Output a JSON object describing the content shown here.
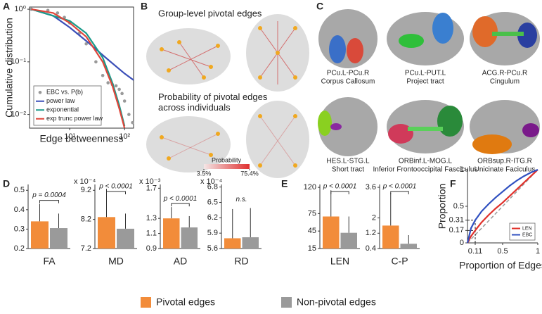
{
  "panel_letters": [
    "A",
    "B",
    "C",
    "D",
    "E",
    "F"
  ],
  "brain_maps": {
    "titles": [
      "Group-level pivotal edges",
      "Probability of pivotal edges across individuals"
    ],
    "colorbar": {
      "label": "Probability",
      "colors": [
        "#f4e6e6",
        "#e03030"
      ],
      "ticks": [
        {
          "value": 3.5,
          "label": "3.5%"
        },
        {
          "value": 75.4,
          "label": "75.4%"
        }
      ]
    }
  },
  "tracts": [
    {
      "pair": "PCu.L-PCu.R",
      "name": "Corpus Callosum"
    },
    {
      "pair": "PCu.L-PUT.L",
      "name": "Project tract"
    },
    {
      "pair": "ACG.R-PCu.R",
      "name": "Cingulum"
    },
    {
      "pair": "HES.L-STG.L",
      "name": "Short tract"
    },
    {
      "pair": "ORBinf.L-MOG.L",
      "name": "Inferior Frontooccipital Fasciculus"
    },
    {
      "pair": "ORBsup.R-ITG.R",
      "name": "Unicinate Faciculus"
    }
  ],
  "groups": [
    {
      "name": "Pivotal edges",
      "color": "#f28c3a"
    },
    {
      "name": "Non-pivotal edges",
      "color": "#9a9a9a"
    }
  ],
  "chart_data": [
    {
      "type": "line",
      "xlabel": "Edge betweenness",
      "ylabel": "Cumulative distribution",
      "xscale": "log",
      "yscale": "log",
      "box": true,
      "legend": "lower left",
      "xlim": [
        1.85,
        146
      ],
      "ylim": [
        0.0055,
        1.1
      ],
      "xticks": [
        {
          "value": 10,
          "label": "10¹"
        },
        {
          "value": 100,
          "label": "10²"
        }
      ],
      "yticks": [
        {
          "value": 0.01,
          "label": "10⁻²"
        },
        {
          "value": 0.1,
          "label": "10⁻¹"
        },
        {
          "value": 1,
          "label": "10⁰"
        }
      ],
      "series": [
        {
          "name": "EBC vs. P(b)",
          "color": "#999999",
          "marker": true,
          "x": [
            2,
            4,
            6,
            8,
            10,
            15,
            20,
            30,
            40,
            50,
            60,
            70,
            80,
            90,
            100,
            120,
            140
          ],
          "values": [
            1,
            0.95,
            0.85,
            0.7,
            0.55,
            0.35,
            0.22,
            0.1,
            0.055,
            0.04,
            0.037,
            0.035,
            0.03,
            0.025,
            0.018,
            0.01,
            0.007
          ]
        },
        {
          "name": "power law",
          "color": "#3b4fb8",
          "x": [
            2,
            5,
            10,
            20,
            50,
            100,
            146
          ],
          "values": [
            1,
            0.75,
            0.45,
            0.25,
            0.11,
            0.06,
            0.045
          ]
        },
        {
          "name": "exponential",
          "color": "#1a9a8a",
          "x": [
            2,
            10,
            20,
            40,
            60,
            80,
            100
          ],
          "values": [
            1,
            0.6,
            0.35,
            0.12,
            0.04,
            0.015,
            0.006
          ]
        },
        {
          "name": "exp trunc power law",
          "color": "#e0453a",
          "x": [
            2,
            5,
            10,
            20,
            40,
            60,
            80,
            100
          ],
          "values": [
            1,
            0.85,
            0.55,
            0.3,
            0.1,
            0.035,
            0.013,
            0.0055
          ]
        }
      ]
    },
    {
      "type": "bar",
      "xlabel": "FA",
      "ylim": [
        0.2,
        0.53
      ],
      "yticks": [
        0.2,
        0.3,
        0.4,
        0.5
      ],
      "values": [
        0.34,
        0.305
      ],
      "errors": [
        0.09,
        0.075
      ],
      "annotation": "p = 0.0004"
    },
    {
      "type": "bar",
      "xlabel": "MD",
      "y_multiplier": "x 10⁻⁴",
      "ylim": [
        7.2,
        9.4
      ],
      "yticks": [
        7.2,
        8.2,
        9.2
      ],
      "values": [
        8.28,
        7.88
      ],
      "errors": [
        0.97,
        0.52
      ],
      "annotation": "p < 0.0001"
    },
    {
      "type": "bar",
      "xlabel": "AD",
      "y_multiplier": "x 10⁻³",
      "ylim": [
        0.9,
        1.75
      ],
      "yticks": [
        0.9,
        1.1,
        1.3,
        1.7
      ],
      "values": [
        1.3,
        1.18
      ],
      "errors": [
        0.15,
        0.15
      ],
      "annotation": "p < 0.0001"
    },
    {
      "type": "bar",
      "xlabel": "RD",
      "y_multiplier": "x 10⁻⁴",
      "ylim": [
        5.6,
        6.85
      ],
      "yticks": [
        5.6,
        5.9,
        6.2,
        6.5,
        6.8
      ],
      "values": [
        5.8,
        5.82
      ],
      "errors": [
        0.57,
        0.57
      ],
      "annotation": "n.s."
    },
    {
      "type": "bar",
      "xlabel": "LEN",
      "ylim": [
        15,
        125
      ],
      "yticks": [
        15,
        45,
        75,
        120
      ],
      "values": [
        70,
        42
      ],
      "errors": [
        45,
        28
      ],
      "annotation": "p < 0.0001"
    },
    {
      "type": "bar",
      "xlabel": "C-P",
      "ylim": [
        0.4,
        3.75
      ],
      "yticks": [
        0.4,
        1.2,
        2,
        3.6
      ],
      "values": [
        1.6,
        0.65
      ],
      "errors": [
        1.7,
        0.45
      ],
      "annotation": "p < 0.0001"
    },
    {
      "type": "line",
      "xlabel": "Proportion of Edges",
      "ylabel": "Proportion",
      "legend": "lower right",
      "xlim": [
        0,
        1
      ],
      "ylim": [
        0,
        1
      ],
      "xticks": [
        0.11,
        0.5,
        1
      ],
      "yticks": [
        0,
        0.17,
        0.31,
        0.5,
        1
      ],
      "diagonal_color": "#9a9a9a",
      "guides": {
        "x": 0.11,
        "y": [
          0.17,
          0.31
        ]
      },
      "x": [
        0,
        0.05,
        0.11,
        0.2,
        0.3,
        0.4,
        0.5,
        0.6,
        0.7,
        0.8,
        0.9,
        1
      ],
      "series": [
        {
          "name": "LEN",
          "color": "#e0302a",
          "values": [
            0,
            0.09,
            0.17,
            0.28,
            0.38,
            0.47,
            0.55,
            0.64,
            0.73,
            0.82,
            0.91,
            1
          ]
        },
        {
          "name": "EBC",
          "color": "#3050c0",
          "values": [
            0,
            0.2,
            0.31,
            0.43,
            0.53,
            0.62,
            0.7,
            0.78,
            0.85,
            0.91,
            0.96,
            1
          ]
        }
      ]
    }
  ]
}
